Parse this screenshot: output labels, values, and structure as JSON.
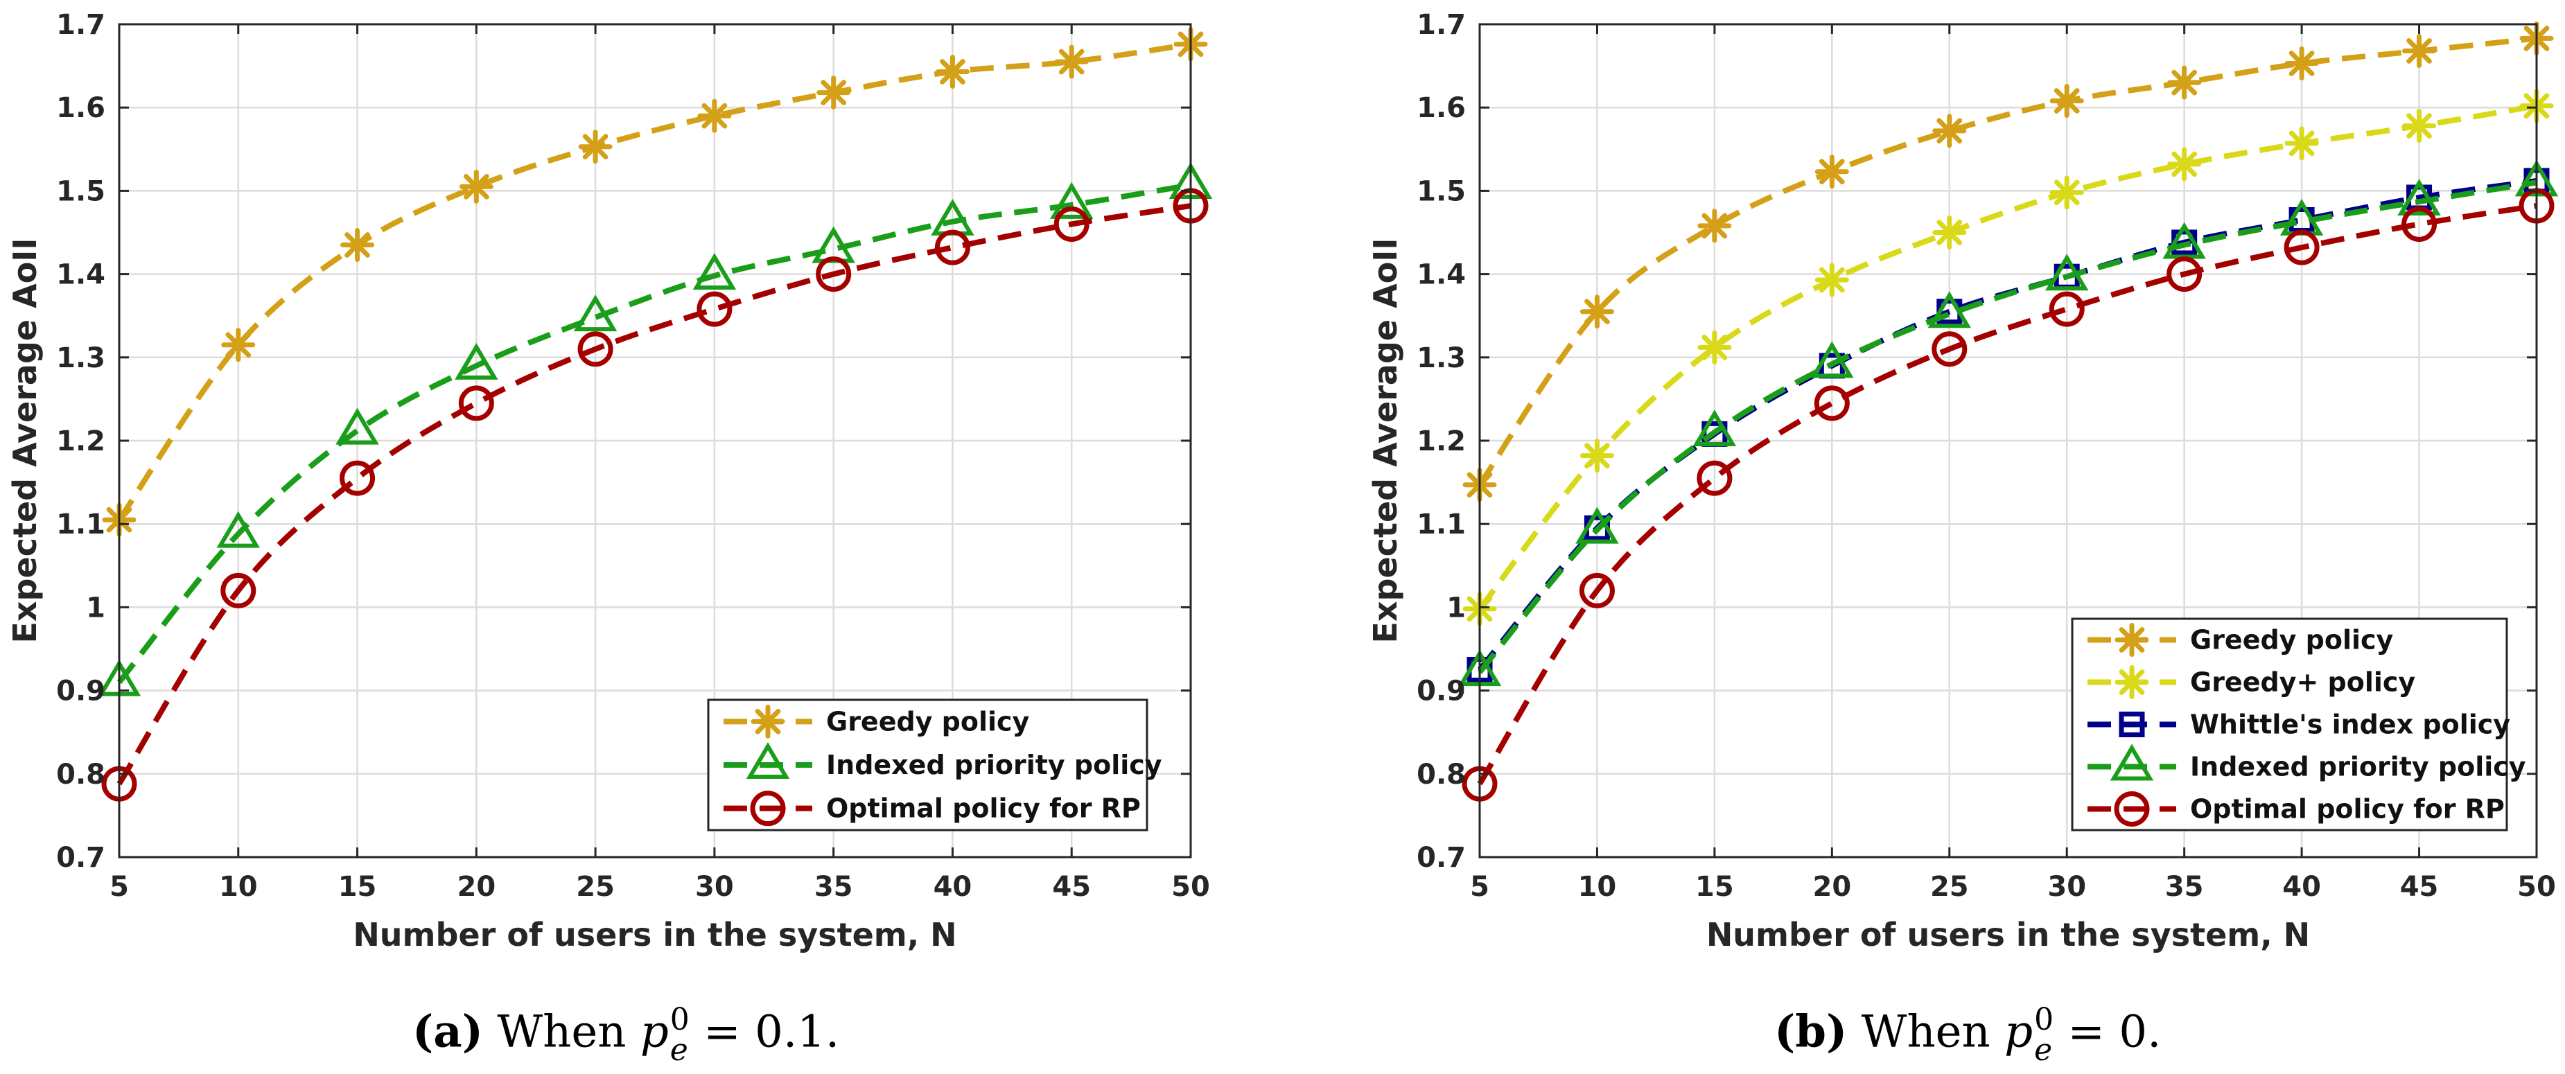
{
  "chart_data": [
    {
      "type": "line",
      "xlabel": "Number of users in the system, N",
      "ylabel": "Expected Average AoII",
      "xlim": [
        5,
        50
      ],
      "ylim": [
        0.7,
        1.7
      ],
      "xticks": [
        "5",
        "10",
        "15",
        "20",
        "25",
        "30",
        "35",
        "40",
        "45",
        "50"
      ],
      "yticks": [
        "0.7",
        "0.8",
        "0.9",
        "1",
        "1.1",
        "1.2",
        "1.3",
        "1.4",
        "1.5",
        "1.6",
        "1.7"
      ],
      "grid": true,
      "legend_position": "bottom-right",
      "x": [
        5,
        10,
        15,
        20,
        25,
        30,
        35,
        40,
        45,
        50
      ],
      "series": [
        {
          "name": "Greedy policy",
          "color": "#d4a017",
          "marker": "asterisk",
          "values": [
            1.105,
            1.315,
            1.435,
            1.505,
            1.553,
            1.59,
            1.618,
            1.643,
            1.655,
            1.676
          ]
        },
        {
          "name": "Indexed priority policy",
          "color": "#1a9e1a",
          "marker": "triangle",
          "values": [
            0.91,
            1.088,
            1.212,
            1.29,
            1.348,
            1.398,
            1.43,
            1.463,
            1.483,
            1.507
          ]
        },
        {
          "name": "Optimal policy for RP",
          "color": "#a40000",
          "marker": "circle",
          "values": [
            0.788,
            1.02,
            1.155,
            1.245,
            1.31,
            1.358,
            1.4,
            1.432,
            1.46,
            1.482
          ]
        }
      ]
    },
    {
      "type": "line",
      "xlabel": "Number of users in the system, N",
      "ylabel": "Expected Average AoII",
      "xlim": [
        5,
        50
      ],
      "ylim": [
        0.7,
        1.7
      ],
      "xticks": [
        "5",
        "10",
        "15",
        "20",
        "25",
        "30",
        "35",
        "40",
        "45",
        "50"
      ],
      "yticks": [
        "0.7",
        "0.8",
        "0.9",
        "1",
        "1.1",
        "1.2",
        "1.3",
        "1.4",
        "1.5",
        "1.6",
        "1.7"
      ],
      "grid": true,
      "legend_position": "bottom-right",
      "x": [
        5,
        10,
        15,
        20,
        25,
        30,
        35,
        40,
        45,
        50
      ],
      "series": [
        {
          "name": "Greedy policy",
          "color": "#d4a017",
          "marker": "asterisk",
          "values": [
            1.147,
            1.355,
            1.458,
            1.523,
            1.572,
            1.608,
            1.63,
            1.653,
            1.668,
            1.683
          ]
        },
        {
          "name": "Greedy+ policy",
          "color": "#d9d919",
          "marker": "asterisk",
          "values": [
            0.998,
            1.182,
            1.312,
            1.393,
            1.45,
            1.498,
            1.532,
            1.557,
            1.578,
            1.602
          ]
        },
        {
          "name": "Whittle's index policy",
          "color": "#00008b",
          "marker": "square",
          "values": [
            0.925,
            1.095,
            1.208,
            1.29,
            1.355,
            1.397,
            1.438,
            1.465,
            1.492,
            1.512
          ]
        },
        {
          "name": "Indexed priority policy",
          "color": "#1a9e1a",
          "marker": "triangle",
          "values": [
            0.922,
            1.093,
            1.21,
            1.292,
            1.352,
            1.397,
            1.435,
            1.463,
            1.487,
            1.51
          ]
        },
        {
          "name": "Optimal policy for RP",
          "color": "#a40000",
          "marker": "circle",
          "values": [
            0.788,
            1.02,
            1.155,
            1.245,
            1.31,
            1.358,
            1.4,
            1.432,
            1.46,
            1.482
          ]
        }
      ]
    }
  ],
  "captions": [
    {
      "label": "(a)",
      "prefix": "When",
      "math_var": "p",
      "math_sup": "0",
      "math_sub": "e",
      "equals": "= 0.1."
    },
    {
      "label": "(b)",
      "prefix": "When",
      "math_var": "p",
      "math_sup": "0",
      "math_sub": "e",
      "equals": "= 0."
    }
  ]
}
